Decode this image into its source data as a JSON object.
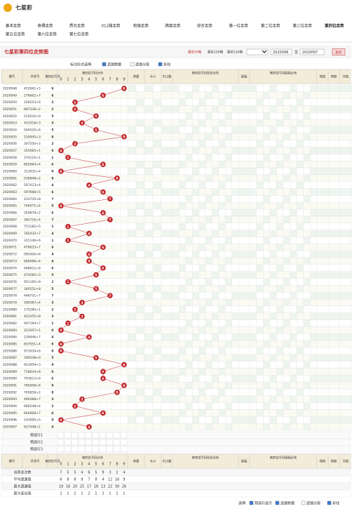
{
  "header": {
    "title": "七星彩"
  },
  "nav": [
    "基本走势",
    "奇偶走势",
    "质合走势",
    "012路走势",
    "和值走势",
    "跨度走势",
    "综合走势",
    "第一位走势",
    "第二位走势",
    "第三位走势",
    "第四位走势",
    "第五位走势",
    "第六位走势",
    "第七位走势"
  ],
  "toolbar": {
    "title": "七星彩第四位走势图",
    "recent": [
      "最近50期",
      "最近100期",
      "最近120期"
    ],
    "from": "2020048",
    "to_label": "至",
    "to": "2020097",
    "button": "查询"
  },
  "options": {
    "label": "标注形式选择:",
    "items": [
      "遗漏数据",
      "遗漏分层",
      "折线"
    ]
  },
  "table": {
    "headers": [
      "期号",
      "开奖号",
      "第四位号码",
      "第四位号码分布",
      "奇偶",
      "大小",
      "012路",
      "第四位号码形态分析",
      "振幅",
      "第四位号码振幅分布",
      "和值",
      "跨度",
      "均值"
    ],
    "dist_labels": [
      0,
      1,
      2,
      3,
      4,
      5,
      6,
      7,
      8,
      9
    ],
    "rows": [
      [
        "2020048",
        "452961+5",
        9
      ],
      [
        "2020049",
        "276602+7",
        6
      ],
      [
        "2020050",
        "226253+6",
        2
      ],
      [
        "2020051",
        "687236+2",
        2
      ],
      [
        "2020052",
        "120542+0",
        5
      ],
      [
        "2020053",
        "433318+3",
        3
      ],
      [
        "2020054",
        "564520+6",
        5
      ],
      [
        "2020055",
        "150945+3",
        9
      ],
      [
        "2020056",
        "307250+2",
        2
      ],
      [
        "2020057",
        "355065+1",
        0
      ],
      [
        "2020058",
        "374125+1",
        1
      ],
      [
        "2020059",
        "802664+4",
        6
      ],
      [
        "2020060",
        "313032+4",
        0
      ],
      [
        "2020061",
        "030848+2",
        8
      ],
      [
        "2020062",
        "567413+4",
        4
      ],
      [
        "2020063",
        "597668+5",
        6
      ],
      [
        "2020064",
        "233735+8",
        7
      ],
      [
        "2020065",
        "746071+4",
        0
      ],
      [
        "2020066",
        "350679+2",
        6
      ],
      [
        "2020067",
        "365716+4",
        7
      ],
      [
        "2020068",
        "751182+5",
        1
      ],
      [
        "2020069",
        "782432+7",
        4
      ],
      [
        "2020070",
        "315146+6",
        1
      ],
      [
        "2020071",
        "476633+7",
        6
      ],
      [
        "2020072",
        "083456+6",
        4
      ],
      [
        "2020073",
        "686486+4",
        4
      ],
      [
        "2020074",
        "948612+6",
        6
      ],
      [
        "2020075",
        "474582+3",
        5
      ],
      [
        "2020076",
        "951195+9",
        1
      ],
      [
        "2020077",
        "340552+8",
        5
      ],
      [
        "2020078",
        "446751+7",
        7
      ],
      [
        "2020079",
        "590387+4",
        3
      ],
      [
        "2020080",
        "175285+1",
        2
      ],
      [
        "2020081",
        "423355+8",
        3
      ],
      [
        "2020082",
        "947194+7",
        1
      ],
      [
        "2020083",
        "221057+1",
        0
      ],
      [
        "2020084",
        "239446+7",
        4
      ],
      [
        "2020085",
        "837051+4",
        0
      ],
      [
        "2020086",
        "971034+6",
        0
      ],
      [
        "2020087",
        "309548+0",
        5
      ],
      [
        "2020088",
        "951959+3",
        9
      ],
      [
        "2020089",
        "718634+8",
        6
      ],
      [
        "2020090",
        "791613+6",
        6
      ],
      [
        "2020091",
        "785958+6",
        9
      ],
      [
        "2020092",
        "765858+2",
        8
      ],
      [
        "2020093",
        "496388+7",
        3
      ],
      [
        "2020094",
        "680248+4",
        2
      ],
      [
        "2020095",
        "664608+7",
        6
      ],
      [
        "2020096",
        "143095+5",
        0
      ],
      [
        "2020097",
        "627448+1",
        4
      ]
    ]
  },
  "preselect": [
    "预选行1",
    "预选行2",
    "预选行3"
  ],
  "stats": [
    {
      "label": "出现总次数",
      "values": [
        7,
        5,
        5,
        4,
        6,
        5,
        9,
        3,
        2,
        4
      ]
    },
    {
      "label": "平均遗漏值",
      "values": [
        6,
        8,
        8,
        9,
        7,
        8,
        4,
        12,
        16,
        9
      ]
    },
    {
      "label": "最大遗漏值",
      "values": [
        19,
        16,
        20,
        25,
        17,
        18,
        13,
        22,
        30,
        26
      ]
    },
    {
      "label": "最大连出值",
      "values": [
        2,
        1,
        2,
        1,
        2,
        1,
        2,
        1,
        1,
        1
      ]
    }
  ],
  "footer": {
    "label": "选择:",
    "items": [
      "预选行显示",
      "遗漏数据",
      "遗漏分层",
      "折线"
    ]
  }
}
